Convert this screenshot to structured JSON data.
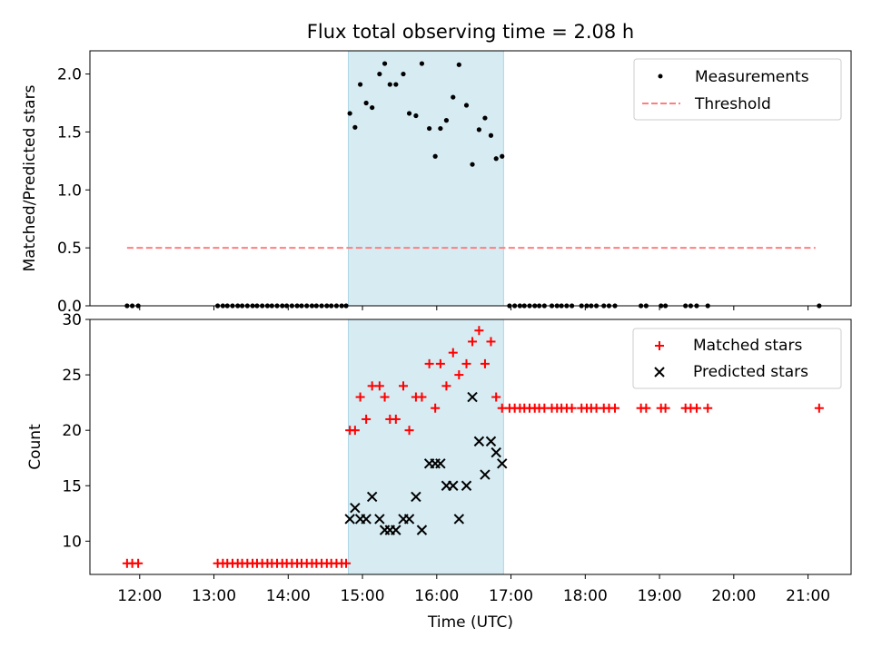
{
  "chart_data": [
    {
      "type": "scatter",
      "title": "Flux total observing time = 2.08 h",
      "xlabel": "",
      "ylabel": "Matched/Predicted stars",
      "xlim": [
        11.33,
        21.58
      ],
      "ylim": [
        0,
        2.2
      ],
      "yticks": [
        0.0,
        0.5,
        1.0,
        1.5,
        2.0
      ],
      "ytick_labels": [
        "0.0",
        "0.5",
        "1.0",
        "1.5",
        "2.0"
      ],
      "shaded_span": [
        14.81,
        16.9
      ],
      "series": [
        {
          "name": "Measurements",
          "marker": "dot",
          "color": "#000000",
          "x": [
            11.83,
            11.9,
            11.98,
            13.05,
            13.12,
            13.18,
            13.25,
            13.32,
            13.38,
            13.45,
            13.52,
            13.58,
            13.65,
            13.72,
            13.78,
            13.85,
            13.92,
            13.98,
            14.05,
            14.12,
            14.18,
            14.25,
            14.32,
            14.38,
            14.45,
            14.52,
            14.58,
            14.65,
            14.72,
            14.78,
            14.83,
            14.9,
            14.97,
            15.05,
            15.13,
            15.23,
            15.3,
            15.37,
            15.45,
            15.55,
            15.63,
            15.72,
            15.8,
            15.9,
            15.98,
            16.05,
            16.13,
            16.22,
            16.3,
            16.4,
            16.48,
            16.57,
            16.65,
            16.73,
            16.8,
            16.88,
            16.98,
            17.05,
            17.12,
            17.18,
            17.25,
            17.32,
            17.38,
            17.45,
            17.55,
            17.62,
            17.68,
            17.75,
            17.82,
            17.95,
            18.02,
            18.08,
            18.15,
            18.25,
            18.32,
            18.4,
            18.75,
            18.82,
            19.02,
            19.08,
            19.35,
            19.42,
            19.5,
            19.65,
            21.15
          ],
          "y": [
            0,
            0,
            0,
            0,
            0,
            0,
            0,
            0,
            0,
            0,
            0,
            0,
            0,
            0,
            0,
            0,
            0,
            0,
            0,
            0,
            0,
            0,
            0,
            0,
            0,
            0,
            0,
            0,
            0,
            0,
            1.66,
            1.54,
            1.91,
            1.75,
            1.71,
            2.0,
            2.09,
            1.91,
            1.91,
            2.0,
            1.66,
            1.64,
            2.09,
            1.53,
            1.29,
            1.53,
            1.6,
            1.8,
            2.08,
            1.73,
            1.22,
            1.52,
            1.62,
            1.47,
            1.27,
            1.29,
            0,
            0,
            0,
            0,
            0,
            0,
            0,
            0,
            0,
            0,
            0,
            0,
            0,
            0,
            0,
            0,
            0,
            0,
            0,
            0,
            0,
            0,
            0,
            0,
            0,
            0,
            0,
            0,
            0
          ]
        },
        {
          "name": "Threshold",
          "marker": "dashed-line",
          "color": "#ff7f7f",
          "x": [
            11.83,
            21.1
          ],
          "y": [
            0.5,
            0.5
          ]
        }
      ],
      "legend": {
        "position": "top-right",
        "entries": [
          "Measurements",
          "Threshold"
        ]
      }
    },
    {
      "type": "scatter",
      "title": "",
      "xlabel": "Time (UTC)",
      "ylabel": "Count",
      "xlim": [
        11.33,
        21.58
      ],
      "ylim": [
        7,
        30
      ],
      "xticks": [
        12,
        13,
        14,
        15,
        16,
        17,
        18,
        19,
        20,
        21
      ],
      "xtick_labels": [
        "12:00",
        "13:00",
        "14:00",
        "15:00",
        "16:00",
        "17:00",
        "18:00",
        "19:00",
        "20:00",
        "21:00"
      ],
      "yticks": [
        10,
        15,
        20,
        25,
        30
      ],
      "ytick_labels": [
        "10",
        "15",
        "20",
        "25",
        "30"
      ],
      "shaded_span": [
        14.81,
        16.9
      ],
      "series": [
        {
          "name": "Matched stars",
          "marker": "plus",
          "color": "#ff0000",
          "x": [
            11.83,
            11.9,
            11.98,
            13.05,
            13.12,
            13.18,
            13.25,
            13.32,
            13.38,
            13.45,
            13.52,
            13.58,
            13.65,
            13.72,
            13.78,
            13.85,
            13.92,
            13.98,
            14.05,
            14.12,
            14.18,
            14.25,
            14.32,
            14.38,
            14.45,
            14.52,
            14.58,
            14.65,
            14.72,
            14.78,
            14.83,
            14.9,
            14.97,
            15.05,
            15.13,
            15.23,
            15.3,
            15.37,
            15.45,
            15.55,
            15.63,
            15.72,
            15.8,
            15.9,
            15.98,
            16.05,
            16.13,
            16.22,
            16.3,
            16.4,
            16.48,
            16.57,
            16.65,
            16.73,
            16.8,
            16.88,
            16.98,
            17.05,
            17.12,
            17.18,
            17.25,
            17.32,
            17.38,
            17.45,
            17.55,
            17.62,
            17.68,
            17.75,
            17.82,
            17.95,
            18.02,
            18.08,
            18.15,
            18.25,
            18.32,
            18.4,
            18.75,
            18.82,
            19.02,
            19.08,
            19.35,
            19.42,
            19.5,
            19.65,
            21.15
          ],
          "y": [
            8,
            8,
            8,
            8,
            8,
            8,
            8,
            8,
            8,
            8,
            8,
            8,
            8,
            8,
            8,
            8,
            8,
            8,
            8,
            8,
            8,
            8,
            8,
            8,
            8,
            8,
            8,
            8,
            8,
            8,
            20,
            20,
            23,
            21,
            24,
            24,
            23,
            21,
            21,
            24,
            20,
            23,
            23,
            26,
            22,
            26,
            24,
            27,
            25,
            26,
            28,
            29,
            26,
            28,
            23,
            22,
            22,
            22,
            22,
            22,
            22,
            22,
            22,
            22,
            22,
            22,
            22,
            22,
            22,
            22,
            22,
            22,
            22,
            22,
            22,
            22,
            22,
            22,
            22,
            22,
            22,
            22,
            22,
            22,
            22
          ]
        },
        {
          "name": "Predicted stars",
          "marker": "x",
          "color": "#000000",
          "x": [
            14.83,
            14.9,
            14.97,
            15.05,
            15.13,
            15.23,
            15.3,
            15.37,
            15.45,
            15.55,
            15.63,
            15.72,
            15.8,
            15.9,
            15.98,
            16.05,
            16.13,
            16.22,
            16.3,
            16.4,
            16.48,
            16.57,
            16.65,
            16.73,
            16.8,
            16.88
          ],
          "y": [
            12,
            13,
            12,
            12,
            14,
            12,
            11,
            11,
            11,
            12,
            12,
            14,
            11,
            17,
            17,
            17,
            15,
            15,
            12,
            15,
            23,
            19,
            16,
            19,
            18,
            17
          ]
        }
      ],
      "legend": {
        "position": "top-right",
        "entries": [
          "Matched stars",
          "Predicted stars"
        ]
      }
    }
  ]
}
